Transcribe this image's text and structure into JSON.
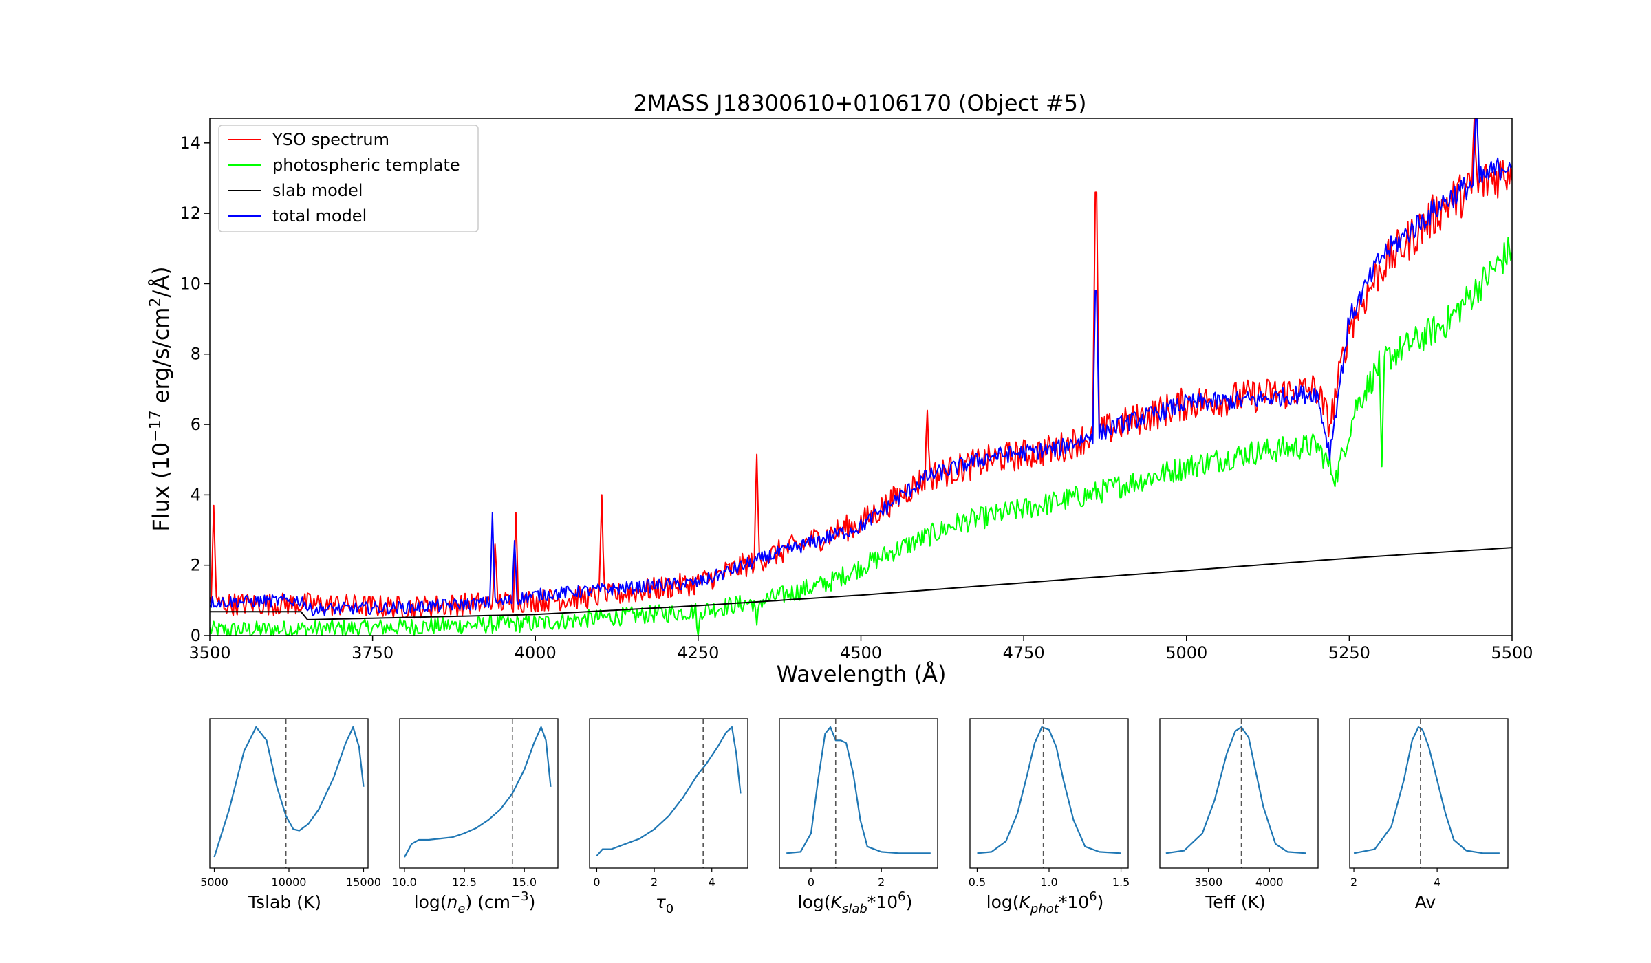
{
  "chart_data": [
    {
      "type": "line",
      "title": "2MASS J18300610+0106170 (Object #5)",
      "xlabel": "Wavelength (Å)",
      "ylabel_base": "Flux (10",
      "ylabel_exp": "−17",
      "ylabel_mid": " erg/s/cm",
      "ylabel_exp2": "2",
      "ylabel_end": "/Å)",
      "xlim": [
        3500,
        5500
      ],
      "ylim": [
        0,
        14.7
      ],
      "xticks": [
        3500,
        3750,
        4000,
        4250,
        4500,
        4750,
        5000,
        5250,
        5500
      ],
      "yticks": [
        0,
        2,
        4,
        6,
        8,
        10,
        12,
        14
      ],
      "legend_position": "upper-left",
      "legend": [
        "YSO spectrum",
        "photospheric template",
        "slab model",
        "total model"
      ],
      "series": [
        {
          "name": "YSO spectrum",
          "color": "#ff0000",
          "noise": 0.55,
          "anchors": [
            [
              3500,
              0.9
            ],
            [
              3650,
              0.9
            ],
            [
              3800,
              0.8
            ],
            [
              4000,
              1.0
            ],
            [
              4100,
              1.1
            ],
            [
              4250,
              1.5
            ],
            [
              4350,
              2.2
            ],
            [
              4500,
              3.2
            ],
            [
              4600,
              4.5
            ],
            [
              4700,
              5.0
            ],
            [
              4800,
              5.3
            ],
            [
              4900,
              6.0
            ],
            [
              5000,
              6.6
            ],
            [
              5100,
              6.8
            ],
            [
              5200,
              7.0
            ],
            [
              5220,
              6.0
            ],
            [
              5250,
              8.8
            ],
            [
              5300,
              10.5
            ],
            [
              5400,
              12.3
            ],
            [
              5500,
              13.3
            ]
          ],
          "spikes": [
            [
              3506,
              3.7
            ],
            [
              3938,
              2.6
            ],
            [
              3970,
              3.5
            ],
            [
              4102,
              4.0
            ],
            [
              4340,
              5.15
            ],
            [
              4602,
              6.4
            ],
            [
              4861,
              12.6
            ],
            [
              5442,
              14.7
            ]
          ]
        },
        {
          "name": "photospheric template",
          "color": "#00ff00",
          "noise": 0.45,
          "anchors": [
            [
              3500,
              0.15
            ],
            [
              3700,
              0.2
            ],
            [
              3900,
              0.3
            ],
            [
              4000,
              0.35
            ],
            [
              4100,
              0.5
            ],
            [
              4250,
              0.7
            ],
            [
              4350,
              1.0
            ],
            [
              4450,
              1.5
            ],
            [
              4550,
              2.4
            ],
            [
              4650,
              3.2
            ],
            [
              4750,
              3.6
            ],
            [
              4850,
              4.0
            ],
            [
              5000,
              4.8
            ],
            [
              5100,
              5.2
            ],
            [
              5200,
              5.4
            ],
            [
              5230,
              4.5
            ],
            [
              5260,
              6.5
            ],
            [
              5300,
              7.8
            ],
            [
              5400,
              8.9
            ],
            [
              5500,
              11.0
            ]
          ],
          "spikes": [
            [
              4250,
              0.0
            ],
            [
              4340,
              0.3
            ],
            [
              5300,
              4.8
            ]
          ]
        },
        {
          "name": "slab model",
          "color": "#000000",
          "noise": 0,
          "anchors": [
            [
              3500,
              0.68
            ],
            [
              3645,
              0.68
            ],
            [
              3646,
              0.45
            ],
            [
              4000,
              0.6
            ],
            [
              4250,
              0.85
            ],
            [
              4500,
              1.15
            ],
            [
              4750,
              1.5
            ],
            [
              5000,
              1.85
            ],
            [
              5250,
              2.2
            ],
            [
              5500,
              2.5
            ]
          ],
          "spikes": []
        },
        {
          "name": "total model",
          "color": "#0000ff",
          "noise": 0.3,
          "anchors": [
            [
              3500,
              0.95
            ],
            [
              3645,
              1.0
            ],
            [
              3650,
              0.75
            ],
            [
              3800,
              0.8
            ],
            [
              3950,
              0.95
            ],
            [
              4000,
              1.15
            ],
            [
              4100,
              1.3
            ],
            [
              4250,
              1.5
            ],
            [
              4350,
              2.2
            ],
            [
              4500,
              3.1
            ],
            [
              4600,
              4.5
            ],
            [
              4700,
              5.1
            ],
            [
              4800,
              5.3
            ],
            [
              4900,
              6.0
            ],
            [
              5000,
              6.6
            ],
            [
              5100,
              6.7
            ],
            [
              5200,
              6.9
            ],
            [
              5220,
              5.2
            ],
            [
              5250,
              9.0
            ],
            [
              5300,
              10.8
            ],
            [
              5400,
              12.4
            ],
            [
              5500,
              13.5
            ]
          ],
          "spikes": [
            [
              3934,
              3.5
            ],
            [
              3968,
              2.7
            ],
            [
              4861,
              9.8
            ],
            [
              5445,
              14.7
            ]
          ]
        }
      ]
    },
    {
      "type": "line",
      "xlabel": "Tslab (K)",
      "xlim": [
        4700,
        15300
      ],
      "xticks": [
        "5000",
        "10000",
        "15000"
      ],
      "xtick_values": [
        5000,
        10000,
        15000
      ],
      "marker": 9800,
      "x": [
        5000,
        6000,
        7000,
        7800,
        8500,
        9200,
        9800,
        10300,
        10700,
        11300,
        12000,
        13000,
        13800,
        14300,
        14700,
        15000
      ],
      "y": [
        0.02,
        0.38,
        0.82,
        1.0,
        0.9,
        0.55,
        0.33,
        0.23,
        0.22,
        0.27,
        0.38,
        0.62,
        0.88,
        1.0,
        0.85,
        0.55
      ]
    },
    {
      "type": "line",
      "xlabel_a": "log(",
      "xlabel_b": "n",
      "xlabel_c": "e",
      "xlabel_d": ") (cm",
      "xlabel_e": "−3",
      "xlabel_f": ")",
      "xlim": [
        9.8,
        16.4
      ],
      "xticks": [
        "10.0",
        "12.5",
        "15.0"
      ],
      "xtick_values": [
        10,
        12.5,
        15
      ],
      "marker": 14.5,
      "x": [
        10.0,
        10.3,
        10.6,
        11.0,
        11.5,
        12.0,
        12.5,
        13.0,
        13.5,
        14.0,
        14.5,
        15.0,
        15.4,
        15.7,
        15.9,
        16.1
      ],
      "y": [
        0.02,
        0.12,
        0.15,
        0.15,
        0.16,
        0.17,
        0.2,
        0.24,
        0.3,
        0.38,
        0.5,
        0.68,
        0.88,
        1.0,
        0.9,
        0.55
      ]
    },
    {
      "type": "line",
      "xlabel_a": "τ",
      "xlabel_b": "0",
      "xlim": [
        -0.25,
        5.25
      ],
      "xticks": [
        "0",
        "2",
        "4"
      ],
      "xtick_values": [
        0,
        2,
        4
      ],
      "marker": 3.7,
      "x": [
        0,
        0.2,
        0.5,
        1.0,
        1.5,
        2.0,
        2.5,
        3.0,
        3.5,
        3.8,
        4.2,
        4.5,
        4.7,
        4.85,
        5.0
      ],
      "y": [
        0.03,
        0.08,
        0.08,
        0.12,
        0.16,
        0.23,
        0.33,
        0.47,
        0.64,
        0.72,
        0.85,
        0.96,
        1.0,
        0.8,
        0.5
      ]
    },
    {
      "type": "line",
      "xlabel_a": "log(",
      "xlabel_b": "K",
      "xlabel_c": "slab",
      "xlabel_d": "*10",
      "xlabel_e": "6",
      "xlabel_f": ")",
      "xlim": [
        -0.9,
        3.6
      ],
      "xticks": [
        "0",
        "2"
      ],
      "xtick_values": [
        0,
        2
      ],
      "marker": 0.7,
      "x": [
        -0.7,
        -0.3,
        0.0,
        0.2,
        0.4,
        0.55,
        0.7,
        0.85,
        1.0,
        1.2,
        1.4,
        1.6,
        2.0,
        2.5,
        3.0,
        3.4
      ],
      "y": [
        0.05,
        0.06,
        0.2,
        0.6,
        0.95,
        1.0,
        0.9,
        0.9,
        0.88,
        0.65,
        0.3,
        0.1,
        0.06,
        0.05,
        0.05,
        0.05
      ]
    },
    {
      "type": "line",
      "xlabel_a": "log(",
      "xlabel_b": "K",
      "xlabel_c": "phot",
      "xlabel_d": "*10",
      "xlabel_e": "6",
      "xlabel_f": ")",
      "xlim": [
        0.45,
        1.55
      ],
      "xticks": [
        "0.5",
        "1.0",
        "1.5"
      ],
      "xtick_values": [
        0.5,
        1.0,
        1.5
      ],
      "marker": 0.96,
      "x": [
        0.5,
        0.6,
        0.7,
        0.78,
        0.85,
        0.9,
        0.95,
        1.0,
        1.05,
        1.1,
        1.17,
        1.25,
        1.35,
        1.5
      ],
      "y": [
        0.05,
        0.06,
        0.14,
        0.35,
        0.65,
        0.88,
        1.0,
        0.98,
        0.85,
        0.6,
        0.3,
        0.1,
        0.06,
        0.05
      ]
    },
    {
      "type": "line",
      "xlabel": "Teff (K)",
      "xlim": [
        3100,
        4400
      ],
      "xticks": [
        "3500",
        "4000"
      ],
      "xtick_values": [
        3500,
        4000
      ],
      "marker": 3770,
      "x": [
        3150,
        3300,
        3450,
        3550,
        3650,
        3720,
        3770,
        3830,
        3880,
        3950,
        4050,
        4150,
        4300
      ],
      "y": [
        0.05,
        0.07,
        0.2,
        0.45,
        0.8,
        0.97,
        1.0,
        0.92,
        0.7,
        0.4,
        0.12,
        0.06,
        0.05
      ]
    },
    {
      "type": "line",
      "xlabel": "Av",
      "xlim": [
        1.9,
        5.7
      ],
      "xticks": [
        "2",
        "4"
      ],
      "xtick_values": [
        2,
        4
      ],
      "marker": 3.6,
      "x": [
        2.0,
        2.5,
        2.9,
        3.2,
        3.4,
        3.55,
        3.65,
        3.8,
        4.0,
        4.2,
        4.4,
        4.7,
        5.1,
        5.5
      ],
      "y": [
        0.05,
        0.08,
        0.25,
        0.6,
        0.9,
        1.0,
        0.98,
        0.85,
        0.6,
        0.35,
        0.15,
        0.07,
        0.05,
        0.05
      ]
    }
  ]
}
